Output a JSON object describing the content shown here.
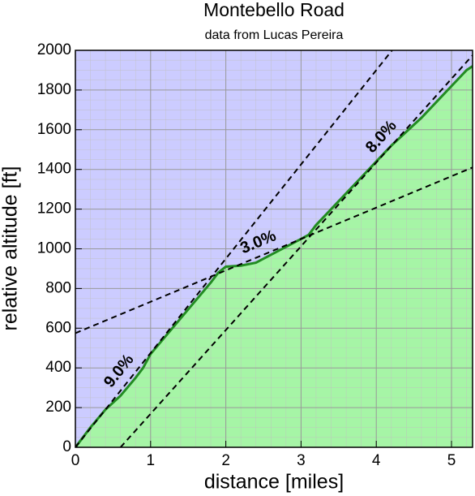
{
  "chart_data": {
    "type": "area",
    "title": "Montebello Road",
    "subtitle": "data from Lucas Pereira",
    "xlabel": "distance [miles]",
    "ylabel": "relative altitude [ft]",
    "x": [
      0,
      0.2,
      0.4,
      0.6,
      0.8,
      0.9,
      1.0,
      1.2,
      1.4,
      1.6,
      1.8,
      1.9,
      2.0,
      2.2,
      2.4,
      2.6,
      2.8,
      3.0,
      3.1,
      3.2,
      3.4,
      3.6,
      3.8,
      4.0,
      4.2,
      4.4,
      4.6,
      4.8,
      5.0,
      5.1,
      5.2,
      5.28
    ],
    "series": [
      {
        "name": "altitude",
        "color": "#228b22",
        "fill": "#a6f5a6",
        "values": [
          0,
          100,
          190,
          260,
          350,
          400,
          470,
          560,
          650,
          740,
          830,
          880,
          910,
          915,
          930,
          970,
          1010,
          1050,
          1070,
          1120,
          1200,
          1280,
          1360,
          1440,
          1520,
          1590,
          1660,
          1740,
          1820,
          1860,
          1900,
          1920
        ]
      }
    ],
    "reference_lines": [
      {
        "label": "9.0%",
        "x": [
          0,
          4.21
        ],
        "y": [
          0,
          2000
        ]
      },
      {
        "label": "3.0%",
        "x": [
          0,
          5.28
        ],
        "y": [
          575,
          1410
        ]
      },
      {
        "label": "8.0%",
        "x": [
          0.6,
          5.28
        ],
        "y": [
          0,
          1975
        ]
      }
    ],
    "xlim": [
      0,
      5.28
    ],
    "ylim": [
      0,
      2000
    ],
    "xticks": [
      0,
      1,
      2,
      3,
      4,
      5
    ],
    "yticks": [
      0,
      200,
      400,
      600,
      800,
      1000,
      1200,
      1400,
      1600,
      1800,
      2000
    ],
    "grid": true,
    "background": "#ccccff"
  }
}
